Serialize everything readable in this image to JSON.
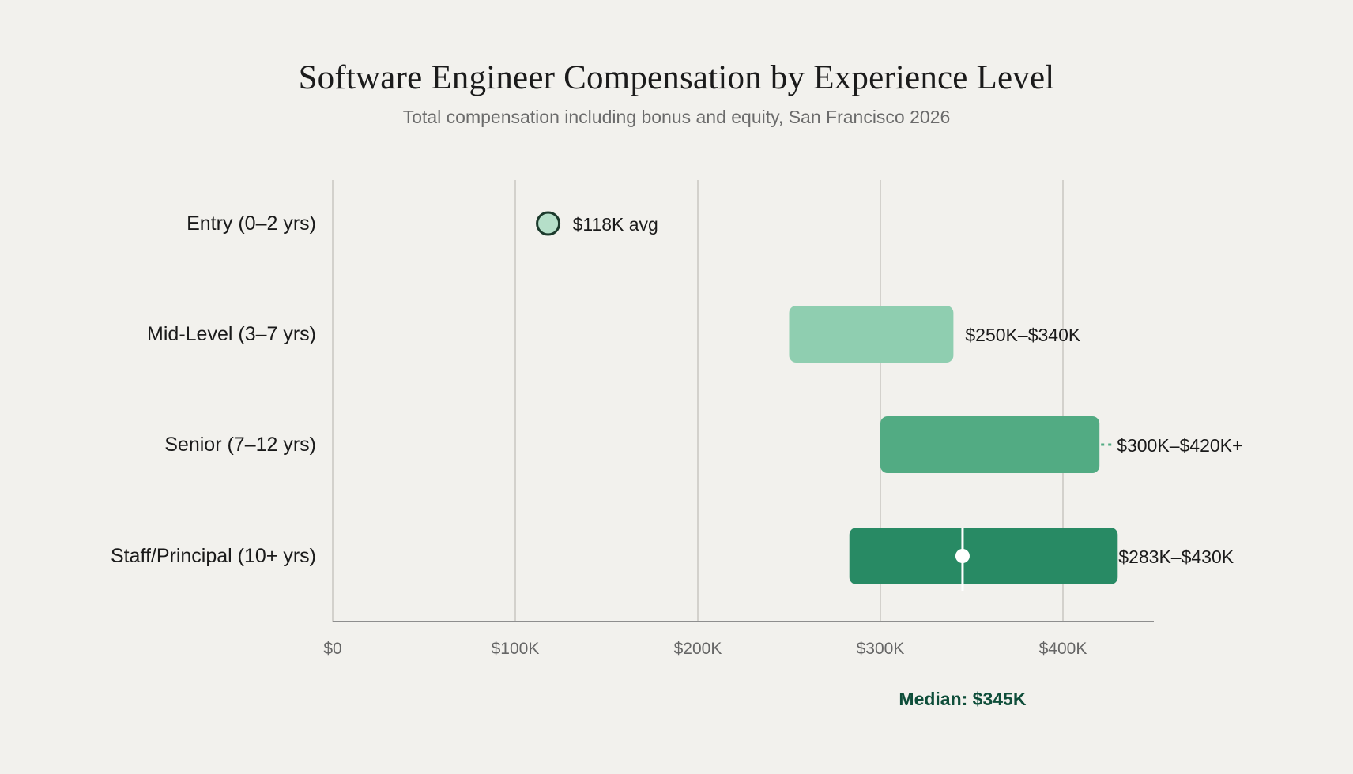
{
  "header": {
    "title": "Software Engineer Compensation by Experience Level",
    "subtitle": "Total compensation including bonus and equity, San Francisco 2026"
  },
  "chart_data": {
    "type": "range-bar",
    "title": "Software Engineer Compensation by Experience Level",
    "subtitle": "Total compensation including bonus and equity, San Francisco 2026",
    "xlim": [
      0,
      450000
    ],
    "x_ticks": [
      {
        "value": 0,
        "label": "$0"
      },
      {
        "value": 100000,
        "label": "$100K"
      },
      {
        "value": 200000,
        "label": "$200K"
      },
      {
        "value": 300000,
        "label": "$300K"
      },
      {
        "value": 400000,
        "label": "$400K"
      }
    ],
    "grid": true,
    "rows": [
      {
        "category": "Entry (0–2 yrs)",
        "kind": "point",
        "value": 118000,
        "label": "$118K avg",
        "color": "#b5dfc9",
        "stroke": "#1c3a2c"
      },
      {
        "category": "Mid-Level (3–7 yrs)",
        "kind": "range",
        "low": 250000,
        "high": 340000,
        "label": "$250K–$340K",
        "color": "#8fceb0"
      },
      {
        "category": "Senior (7–12 yrs)",
        "kind": "range",
        "low": 300000,
        "high": 420000,
        "label": "$300K–$420K+",
        "color": "#52ab83",
        "open_ended": true
      },
      {
        "category": "Staff/Principal (10+ yrs)",
        "kind": "range",
        "low": 283000,
        "high": 430000,
        "label": "$283K–$430K",
        "color": "#288a64",
        "median": 345000
      }
    ],
    "median_annotation": {
      "value": 345000,
      "label": "Median: $345K",
      "color": "#0f4e3a"
    }
  }
}
